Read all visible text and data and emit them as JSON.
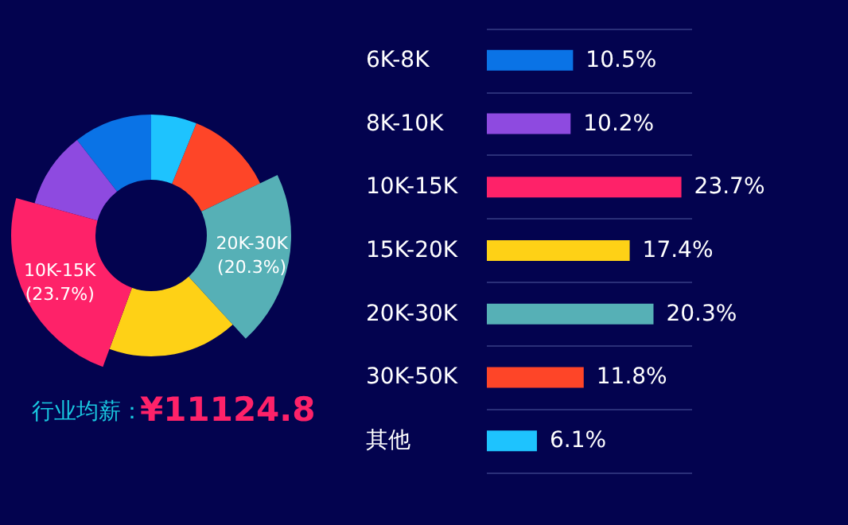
{
  "chart_data": [
    {
      "type": "donut",
      "categories": [
        null,
        null,
        "10K-15K",
        null,
        "20K-30K",
        null,
        null
      ],
      "values": [
        10.5,
        10.2,
        23.7,
        17.4,
        20.3,
        11.8,
        6.1
      ],
      "colors": [
        "#0a73e6",
        "#8e4ae0",
        "#fe2269",
        "#fed116",
        "#56b0b6",
        "#fe4528",
        "#1ec3fe"
      ],
      "value_labels": [
        null,
        null,
        "(23.7%)",
        null,
        "(20.3%)",
        null,
        null
      ],
      "annotations": [
        "行业均薪：",
        "¥11124.8"
      ]
    },
    {
      "type": "bar",
      "orientation": "horizontal",
      "categories": [
        "6K-8K",
        "8K-10K",
        "10K-15K",
        "15K-20K",
        "20K-30K",
        "30K-50K",
        "其他"
      ],
      "values": [
        10.5,
        10.2,
        23.7,
        17.4,
        20.3,
        11.8,
        6.1
      ],
      "colors": [
        "#0a73e6",
        "#8e4ae0",
        "#fe2269",
        "#fed116",
        "#56b0b6",
        "#fe4528",
        "#1ec3fe"
      ],
      "value_labels": [
        "10.5%",
        "10.2%",
        "23.7%",
        "17.4%",
        "20.3%",
        "11.8%",
        "6.1%"
      ],
      "grid": "y"
    }
  ]
}
